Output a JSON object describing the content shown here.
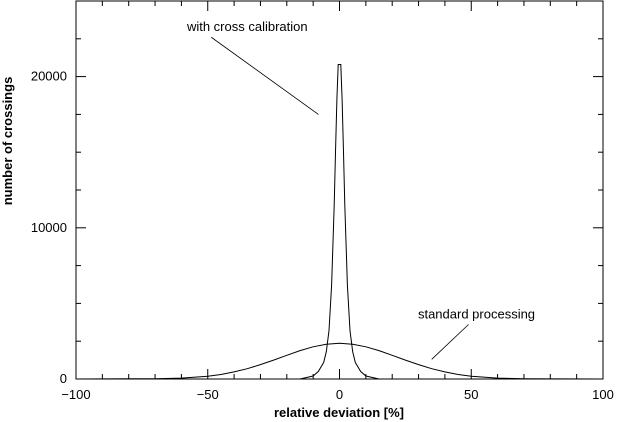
{
  "chart_data": {
    "type": "line",
    "title": "",
    "xlabel": "relative deviation [%]",
    "ylabel": "number of crossings",
    "xlim": [
      -100,
      100
    ],
    "ylim": [
      0,
      25000
    ],
    "xticks": [
      -100,
      -50,
      0,
      50,
      100
    ],
    "xtick_labels": [
      "−100",
      "−50",
      "0",
      "50",
      "100"
    ],
    "yticks": [
      0,
      10000,
      20000
    ],
    "ytick_labels": [
      "0",
      "10000",
      "20000"
    ],
    "grid": false,
    "legend": "none",
    "series": [
      {
        "x": [
          -15,
          -10,
          -8,
          -6,
          -5,
          -4,
          -3,
          -2,
          -1.5,
          -1,
          -0.5,
          0,
          0.5,
          1,
          1.5,
          2,
          3,
          4,
          5,
          6,
          8,
          10,
          15
        ],
        "y": [
          0,
          200,
          500,
          1100,
          1800,
          3200,
          6200,
          11500,
          15000,
          18500,
          20800,
          20800,
          20800,
          18500,
          15000,
          11500,
          6200,
          3200,
          1800,
          1100,
          500,
          200,
          0
        ]
      },
      {
        "x": [
          -100,
          -70,
          -60,
          -50,
          -45,
          -40,
          -35,
          -30,
          -25,
          -20,
          -15,
          -10,
          -5,
          0,
          5,
          10,
          15,
          20,
          25,
          30,
          35,
          40,
          45,
          50,
          60,
          70,
          100
        ],
        "y": [
          0,
          20,
          60,
          180,
          300,
          470,
          680,
          950,
          1250,
          1570,
          1880,
          2130,
          2300,
          2370,
          2300,
          2130,
          1880,
          1570,
          1250,
          950,
          680,
          470,
          300,
          180,
          60,
          20,
          0
        ]
      }
    ],
    "annotations": [
      {
        "text": "with cross calibration",
        "x": -35,
        "y": 23000,
        "arrow_to": [
          -8,
          17500
        ]
      },
      {
        "text": "standard processing",
        "x": 52,
        "y": 4000,
        "arrow_to": [
          35,
          1300
        ]
      }
    ]
  }
}
